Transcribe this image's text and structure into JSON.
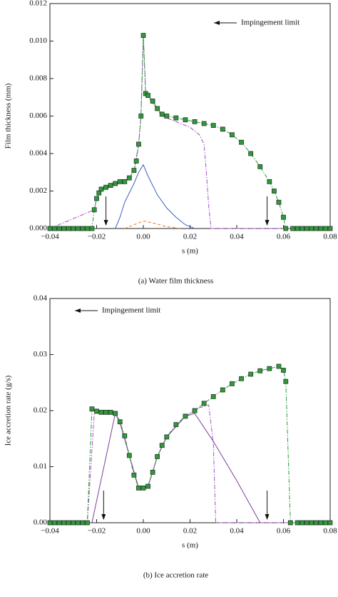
{
  "chart_data": [
    {
      "type": "line",
      "annotation": "Impingement limit",
      "xlabel": "s (m)",
      "ylabel": "Film thickness (mm)",
      "caption": "(a) Water film thickness",
      "xlim": [
        -0.04,
        0.08
      ],
      "xticks": [
        {
          "value": -0.04,
          "label": "−0.04"
        },
        {
          "value": -0.02,
          "label": "−0.02"
        },
        {
          "value": 0,
          "label": "0.00"
        },
        {
          "value": 0.02,
          "label": "0.02"
        },
        {
          "value": 0.04,
          "label": "0.04"
        },
        {
          "value": 0.06,
          "label": "0.06"
        },
        {
          "value": 0.08,
          "label": "0.08"
        }
      ],
      "ylim": [
        0,
        0.012
      ],
      "yticks": [
        {
          "value": 0,
          "label": "0.000"
        },
        {
          "value": 0.002,
          "label": "0.002"
        },
        {
          "value": 0.004,
          "label": "0.004"
        },
        {
          "value": 0.006,
          "label": "0.006"
        },
        {
          "value": 0.008,
          "label": "0.008"
        },
        {
          "value": 0.01,
          "label": "0.010"
        },
        {
          "value": 0.012,
          "label": "0.012"
        }
      ],
      "limits": [
        -0.016,
        0.053
      ],
      "series": [
        {
          "color": "#a34fc4",
          "style": "dashdot",
          "x": [
            -0.04,
            -0.021,
            -0.02,
            -0.018,
            -0.014,
            -0.01,
            -0.006,
            -0.004,
            -0.002,
            -0.001,
            0,
            0.001,
            0.004,
            0.008,
            0.014,
            0.02,
            0.024,
            0.026,
            0.027,
            0.028,
            0.029,
            0.08
          ],
          "values": [
            0,
            0.001,
            0.0016,
            0.0021,
            0.0023,
            0.0025,
            0.0027,
            0.0031,
            0.0045,
            0.006,
            0.0103,
            0.0072,
            0.0067,
            0.006,
            0.0057,
            0.0054,
            0.005,
            0.0045,
            0.003,
            0.0012,
            0,
            0
          ]
        },
        {
          "color": "#3b5fc0",
          "style": "solid",
          "x": [
            -0.012,
            -0.01,
            -0.008,
            -0.006,
            -0.004,
            -0.002,
            0,
            0.002,
            0.006,
            0.01,
            0.014,
            0.018,
            0.022
          ],
          "values": [
            0,
            0.0006,
            0.0014,
            0.0019,
            0.0024,
            0.003,
            0.0034,
            0.0028,
            0.0018,
            0.0011,
            0.0006,
            0.0002,
            0
          ]
        },
        {
          "color": "#e07a2a",
          "style": "dashed",
          "x": [
            -0.008,
            -0.004,
            0,
            0.004,
            0.01,
            0.016
          ],
          "values": [
            0,
            0.0002,
            0.0004,
            0.0003,
            0.0001,
            0
          ]
        },
        {
          "color": "#2e9a3a",
          "style": "dashdot",
          "marker": "square",
          "x": [
            -0.04,
            -0.038,
            -0.036,
            -0.034,
            -0.032,
            -0.03,
            -0.028,
            -0.026,
            -0.024,
            -0.022,
            -0.021,
            -0.02,
            -0.019,
            -0.018,
            -0.016,
            -0.014,
            -0.012,
            -0.01,
            -0.008,
            -0.006,
            -0.004,
            -0.003,
            -0.002,
            -0.001,
            0,
            0.001,
            0.002,
            0.004,
            0.006,
            0.008,
            0.01,
            0.014,
            0.018,
            0.022,
            0.026,
            0.03,
            0.034,
            0.038,
            0.042,
            0.046,
            0.05,
            0.054,
            0.056,
            0.058,
            0.06,
            0.061,
            0.064,
            0.066,
            0.068,
            0.07,
            0.072,
            0.074,
            0.076,
            0.078,
            0.08
          ],
          "values": [
            0,
            0,
            0,
            0,
            0,
            0,
            0,
            0,
            0,
            0,
            0.001,
            0.0016,
            0.0019,
            0.0021,
            0.0022,
            0.0023,
            0.0024,
            0.0025,
            0.0025,
            0.0027,
            0.0031,
            0.0036,
            0.0045,
            0.006,
            0.0103,
            0.0072,
            0.0071,
            0.0068,
            0.0064,
            0.0061,
            0.006,
            0.0059,
            0.0058,
            0.0057,
            0.0056,
            0.0055,
            0.0053,
            0.005,
            0.0046,
            0.004,
            0.0033,
            0.0025,
            0.002,
            0.0014,
            0.0006,
            0,
            0,
            0,
            0,
            0,
            0,
            0,
            0,
            0,
            0
          ]
        }
      ]
    },
    {
      "type": "line",
      "annotation": "Impingement limit",
      "xlabel": "s (m)",
      "ylabel": "Ice accretion rate (g/s)",
      "caption": "(b) Ice accretion rate",
      "xlim": [
        -0.04,
        0.08
      ],
      "xticks": [
        {
          "value": -0.04,
          "label": "−0.04"
        },
        {
          "value": -0.02,
          "label": "−0.02"
        },
        {
          "value": 0,
          "label": "0.00"
        },
        {
          "value": 0.02,
          "label": "0.02"
        },
        {
          "value": 0.04,
          "label": "0.04"
        },
        {
          "value": 0.06,
          "label": "0.06"
        },
        {
          "value": 0.08,
          "label": "0.08"
        }
      ],
      "ylim": [
        0,
        0.04
      ],
      "yticks": [
        {
          "value": 0,
          "label": "0.00"
        },
        {
          "value": 0.01,
          "label": "0.01"
        },
        {
          "value": 0.02,
          "label": "0.02"
        },
        {
          "value": 0.03,
          "label": "0.03"
        },
        {
          "value": 0.04,
          "label": "0.04"
        }
      ],
      "limits": [
        -0.017,
        0.053
      ],
      "series": [
        {
          "color": "#a34fc4",
          "style": "dashdot",
          "x": [
            -0.04,
            -0.024,
            -0.021,
            -0.012,
            -0.01,
            -0.006,
            -0.002,
            0.002,
            0.006,
            0.01,
            0.018,
            0.024,
            0.028,
            0.03,
            0.031,
            0.08
          ],
          "values": [
            0,
            0,
            0.0195,
            0.0196,
            0.018,
            0.012,
            0.0062,
            0.0065,
            0.0118,
            0.0153,
            0.019,
            0.0205,
            0.021,
            0.014,
            0,
            0
          ]
        },
        {
          "color": "#7d3f98",
          "style": "solid",
          "x": [
            -0.022,
            -0.012,
            -0.01,
            -0.006,
            -0.002,
            0.002,
            0.006,
            0.01,
            0.018,
            0.022,
            0.03,
            0.04,
            0.05
          ],
          "values": [
            0,
            0.0195,
            0.0178,
            0.012,
            0.0062,
            0.0065,
            0.0118,
            0.0153,
            0.019,
            0.0195,
            0.0145,
            0.0075,
            0
          ]
        },
        {
          "color": "#2e9a3a",
          "style": "dashdot",
          "marker": "square",
          "x": [
            -0.04,
            -0.038,
            -0.036,
            -0.034,
            -0.032,
            -0.03,
            -0.028,
            -0.026,
            -0.024,
            -0.022,
            -0.02,
            -0.018,
            -0.016,
            -0.014,
            -0.012,
            -0.01,
            -0.008,
            -0.006,
            -0.004,
            -0.002,
            0,
            0.002,
            0.004,
            0.006,
            0.008,
            0.01,
            0.014,
            0.018,
            0.022,
            0.026,
            0.03,
            0.034,
            0.038,
            0.042,
            0.046,
            0.05,
            0.054,
            0.058,
            0.06,
            0.061,
            0.063,
            0.066,
            0.068,
            0.07,
            0.072,
            0.074,
            0.076,
            0.078,
            0.08
          ],
          "values": [
            0,
            0,
            0,
            0,
            0,
            0,
            0,
            0,
            0,
            0.0203,
            0.0199,
            0.0197,
            0.0197,
            0.0197,
            0.0195,
            0.018,
            0.0155,
            0.012,
            0.0085,
            0.0062,
            0.0062,
            0.0065,
            0.009,
            0.0118,
            0.0138,
            0.0153,
            0.0175,
            0.019,
            0.02,
            0.0213,
            0.0225,
            0.0237,
            0.0248,
            0.0257,
            0.0265,
            0.0271,
            0.0275,
            0.0279,
            0.0272,
            0.0252,
            0,
            0,
            0,
            0,
            0,
            0,
            0,
            0,
            0
          ]
        }
      ]
    }
  ]
}
